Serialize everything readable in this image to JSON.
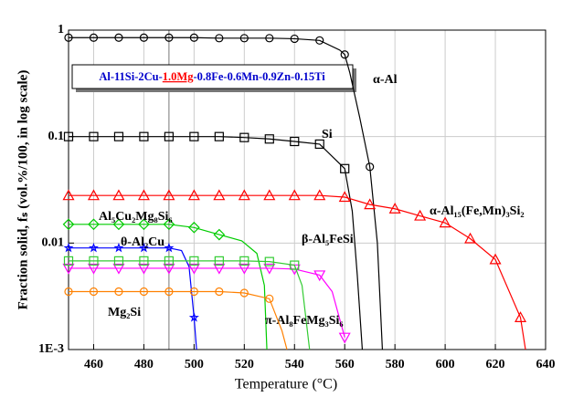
{
  "chart_data": {
    "type": "line",
    "x_label": "Temperature (°C)",
    "y_label": "Fraction solid, fₛ (vol.%/100, in log scale)",
    "annotation": [
      "Al-11Si-2Cu-",
      "1.0Mg",
      "-0.8Fe-0.6Mn-0.9Zn-0.15Ti"
    ],
    "log_y": true,
    "grid": true,
    "vline": 490,
    "xlim": [
      450,
      640
    ],
    "xticks": [
      460,
      480,
      500,
      520,
      540,
      560,
      580,
      600,
      620,
      640
    ],
    "ylim": [
      0.001,
      1
    ],
    "yticks": [
      {
        "value": 0.001,
        "label": "1E-3"
      },
      0.01,
      0.1,
      1
    ],
    "series": [
      {
        "name": "α-Al",
        "color": "#000000",
        "marker": "circle",
        "x": [
          450,
          460,
          470,
          480,
          490,
          500,
          510,
          520,
          530,
          540,
          550,
          558,
          560,
          562,
          566,
          570,
          573,
          575
        ],
        "values": [
          0.85,
          0.85,
          0.85,
          0.85,
          0.85,
          0.85,
          0.84,
          0.84,
          0.84,
          0.83,
          0.8,
          0.65,
          0.59,
          0.4,
          0.15,
          0.052,
          0.01,
          0.001
        ]
      },
      {
        "name": "Si",
        "color": "#000000",
        "marker": "square",
        "x": [
          450,
          460,
          470,
          480,
          490,
          500,
          510,
          520,
          530,
          540,
          550,
          560,
          563,
          565,
          567
        ],
        "values": [
          0.1,
          0.1,
          0.1,
          0.1,
          0.1,
          0.1,
          0.1,
          0.098,
          0.095,
          0.09,
          0.085,
          0.05,
          0.02,
          0.005,
          0.001
        ]
      },
      {
        "name": "α-Al₁₅(Fe,Mn)₃Si₂",
        "color": "#ff0000",
        "marker": "triangle",
        "x": [
          450,
          460,
          470,
          480,
          490,
          500,
          510,
          520,
          530,
          540,
          550,
          560,
          570,
          580,
          590,
          600,
          610,
          620,
          630,
          632
        ],
        "values": [
          0.028,
          0.028,
          0.028,
          0.028,
          0.028,
          0.028,
          0.028,
          0.028,
          0.028,
          0.028,
          0.028,
          0.027,
          0.023,
          0.021,
          0.018,
          0.0155,
          0.011,
          0.007,
          0.002,
          0.001
        ]
      },
      {
        "name": "Al₅Cu₂Mg₈Si₆",
        "color": "#00cc00",
        "marker": "diamond",
        "x": [
          450,
          460,
          470,
          480,
          490,
          500,
          510,
          519,
          525,
          528,
          529
        ],
        "values": [
          0.015,
          0.015,
          0.015,
          0.015,
          0.015,
          0.014,
          0.012,
          0.0105,
          0.008,
          0.004,
          0.001
        ]
      },
      {
        "name": "θ-Al₂Cu",
        "color": "#0000ff",
        "marker": "star",
        "x": [
          450,
          460,
          470,
          480,
          490,
          495,
          498,
          500,
          501
        ],
        "values": [
          0.009,
          0.009,
          0.009,
          0.009,
          0.009,
          0.0085,
          0.006,
          0.002,
          0.001
        ]
      },
      {
        "name": "β-Al₅FeSi",
        "color": "#ff00ff",
        "marker": "triangle-down",
        "x": [
          450,
          460,
          470,
          480,
          490,
          500,
          510,
          520,
          530,
          540,
          550,
          555,
          560
        ],
        "values": [
          0.0058,
          0.0058,
          0.0058,
          0.0058,
          0.0058,
          0.0058,
          0.0058,
          0.0058,
          0.0058,
          0.0057,
          0.005,
          0.0035,
          0.0013
        ]
      },
      {
        "name": "π-Al₈FeMg₃Si₆",
        "color": "#33cc33",
        "marker": "square",
        "x": [
          450,
          460,
          470,
          480,
          490,
          500,
          510,
          520,
          530,
          540,
          543,
          546
        ],
        "values": [
          0.0068,
          0.0068,
          0.0068,
          0.0068,
          0.0068,
          0.0068,
          0.0068,
          0.0068,
          0.0067,
          0.0062,
          0.004,
          0.001
        ]
      },
      {
        "name": "Mg₂Si",
        "color": "#ff8000",
        "marker": "circle",
        "x": [
          450,
          460,
          470,
          480,
          490,
          500,
          510,
          520,
          530,
          535,
          537
        ],
        "values": [
          0.0035,
          0.0035,
          0.0035,
          0.0035,
          0.0035,
          0.0035,
          0.0035,
          0.0034,
          0.003,
          0.0015,
          0.001
        ]
      }
    ]
  }
}
